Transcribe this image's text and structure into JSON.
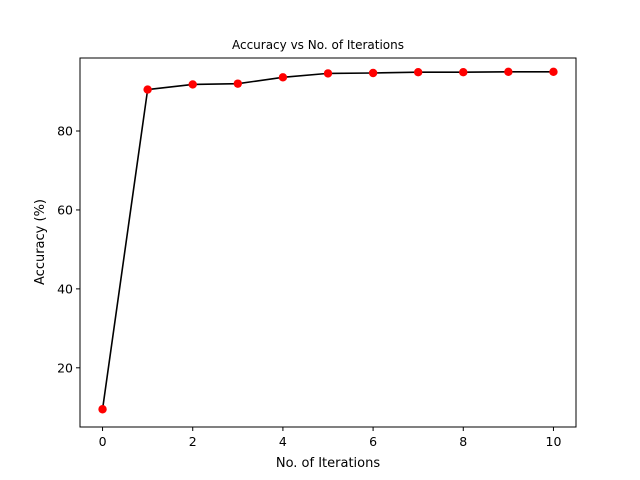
{
  "chart_data": {
    "type": "line",
    "title": "Accuracy vs No. of Iterations",
    "xlabel": "No. of Iterations",
    "ylabel": "Accuracy (%)",
    "x": [
      0,
      1,
      2,
      3,
      4,
      5,
      6,
      7,
      8,
      9,
      10
    ],
    "series": [
      {
        "values": [
          9.5,
          90.5,
          91.8,
          92.0,
          93.6,
          94.6,
          94.7,
          94.9,
          94.9,
          95.0,
          95.0
        ],
        "line_color": "#000000",
        "marker_color": "#ff0000"
      }
    ],
    "xlim": [
      -0.5,
      10.5
    ],
    "ylim": [
      5,
      98.5
    ],
    "xticks": [
      0,
      2,
      4,
      6,
      8,
      10
    ],
    "yticks": [
      20,
      40,
      60,
      80
    ],
    "grid": false,
    "legend": "none"
  }
}
